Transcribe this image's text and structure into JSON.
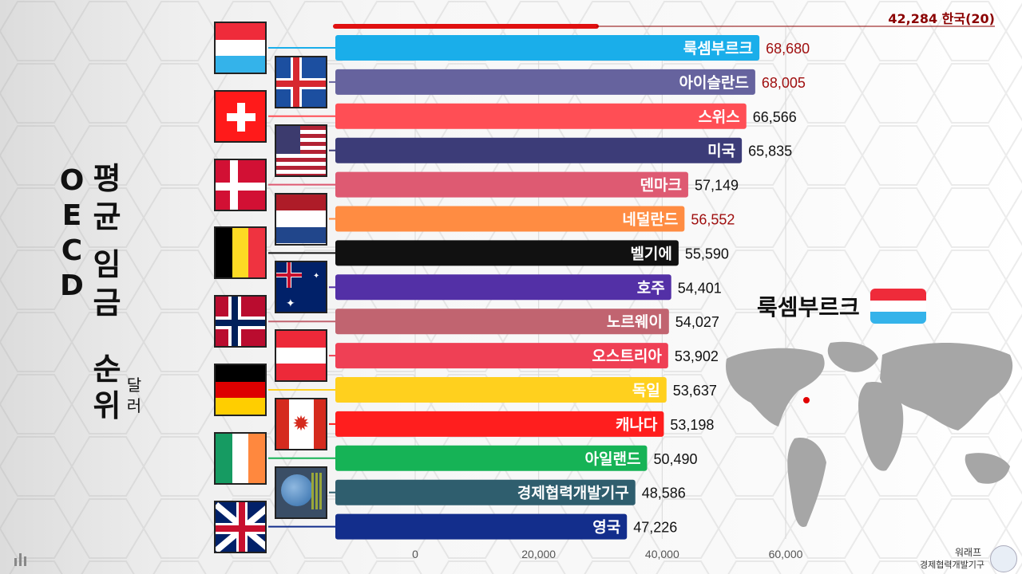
{
  "title": {
    "oecd_letters": [
      "O",
      "E",
      "C",
      "D"
    ],
    "avg_chars": [
      "평",
      "균"
    ],
    "wage_chars": [
      "임",
      "금"
    ],
    "rank_chars": [
      "순",
      "위"
    ],
    "unit_chars": [
      "달",
      "러"
    ]
  },
  "reference": {
    "label": "42,284 한국(20)",
    "value": 42284,
    "color": "#8b0000"
  },
  "highlight": {
    "label": "룩셈부르크"
  },
  "credits": {
    "line1": "워래프",
    "line2": "경제협력개발기구"
  },
  "chart_data": {
    "type": "bar",
    "orientation": "horizontal",
    "categories": [
      "룩셈부르크",
      "아이슬란드",
      "스위스",
      "미국",
      "덴마크",
      "네덜란드",
      "벨기에",
      "호주",
      "노르웨이",
      "오스트리아",
      "독일",
      "캐나다",
      "아일랜드",
      "경제협력개발기구",
      "영국"
    ],
    "values": [
      68680,
      68005,
      66566,
      65835,
      57149,
      56552,
      55590,
      54401,
      54027,
      53902,
      53637,
      53198,
      50490,
      48586,
      47226
    ],
    "value_labels": [
      "68,680",
      "68,005",
      "66,566",
      "65,835",
      "57,149",
      "56,552",
      "55,590",
      "54,401",
      "54,027",
      "53,902",
      "53,637",
      "53,198",
      "50,490",
      "48,586",
      "47,226"
    ],
    "label_colors": [
      "#a01010",
      "#a01010",
      "#111",
      "#111",
      "#111",
      "#a01010",
      "#111",
      "#111",
      "#111",
      "#111",
      "#111",
      "#111",
      "#111",
      "#111",
      "#111"
    ],
    "colors": [
      "#1aaeea",
      "#66639e",
      "#ff4e55",
      "#3c3c78",
      "#de5a72",
      "#ff8c42",
      "#111111",
      "#5330a6",
      "#c16470",
      "#ef4055",
      "#ffd01e",
      "#ff1e1e",
      "#16b356",
      "#2f5e6e",
      "#132e8c"
    ],
    "flags": [
      "luxembourg-flag",
      "iceland-flag",
      "switzerland-flag",
      "usa-flag",
      "denmark-flag",
      "netherlands-flag",
      "belgium-flag",
      "australia-flag",
      "norway-flag",
      "austria-flag",
      "germany-flag",
      "canada-flag",
      "ireland-flag",
      "oecd-logo",
      "uk-flag"
    ],
    "x_ticks": [
      0,
      20000,
      40000,
      60000
    ],
    "x_tick_labels": [
      "0",
      "20,000",
      "40,000",
      "60,000"
    ],
    "xlim": [
      0,
      70000
    ],
    "grid": true
  }
}
